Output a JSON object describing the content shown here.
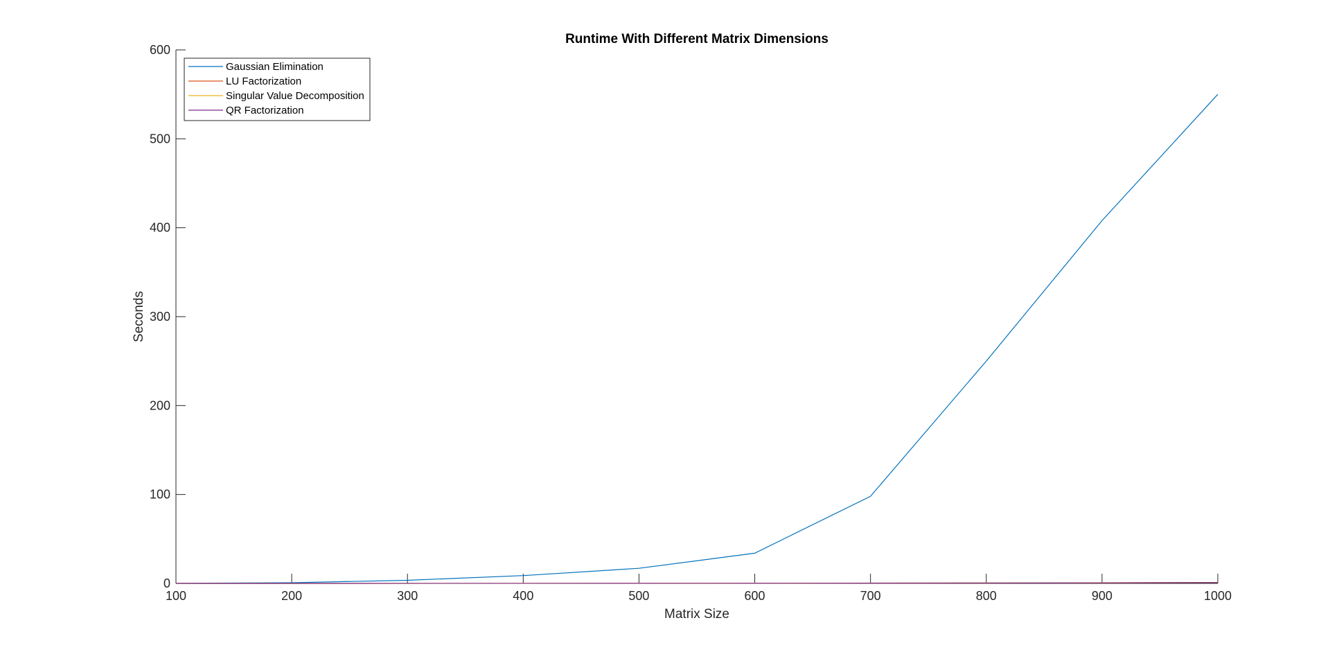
{
  "chart_data": {
    "type": "line",
    "title": "Runtime With Different Matrix Dimensions",
    "xlabel": "Matrix Size",
    "ylabel": "Seconds",
    "xlim": [
      100,
      1000
    ],
    "ylim": [
      0,
      600
    ],
    "xticks": [
      "100",
      "200",
      "300",
      "400",
      "500",
      "600",
      "700",
      "800",
      "900",
      "1000"
    ],
    "yticks": [
      "0",
      "100",
      "200",
      "300",
      "400",
      "500",
      "600"
    ],
    "grid": false,
    "legend_position": "top-left",
    "x": [
      100,
      200,
      300,
      400,
      500,
      600,
      700,
      800,
      900,
      1000
    ],
    "series": [
      {
        "name": "Gaussian Elimination",
        "color": "#0072BD",
        "values": [
          0.1,
          0.8,
          3.5,
          8.8,
          17,
          34,
          98,
          250,
          408,
          550
        ]
      },
      {
        "name": "LU Factorization",
        "color": "#D95319",
        "values": [
          0,
          0.01,
          0.02,
          0.05,
          0.1,
          0.15,
          0.25,
          0.4,
          0.6,
          0.9
        ]
      },
      {
        "name": "Singular Value Decomposition",
        "color": "#EDB120",
        "values": [
          0,
          0.02,
          0.05,
          0.1,
          0.2,
          0.3,
          0.45,
          0.6,
          0.8,
          1.0
        ]
      },
      {
        "name": "QR Factorization",
        "color": "#7E2F8E",
        "values": [
          0,
          0.01,
          0.03,
          0.06,
          0.12,
          0.2,
          0.3,
          0.45,
          0.65,
          0.95
        ]
      }
    ]
  }
}
